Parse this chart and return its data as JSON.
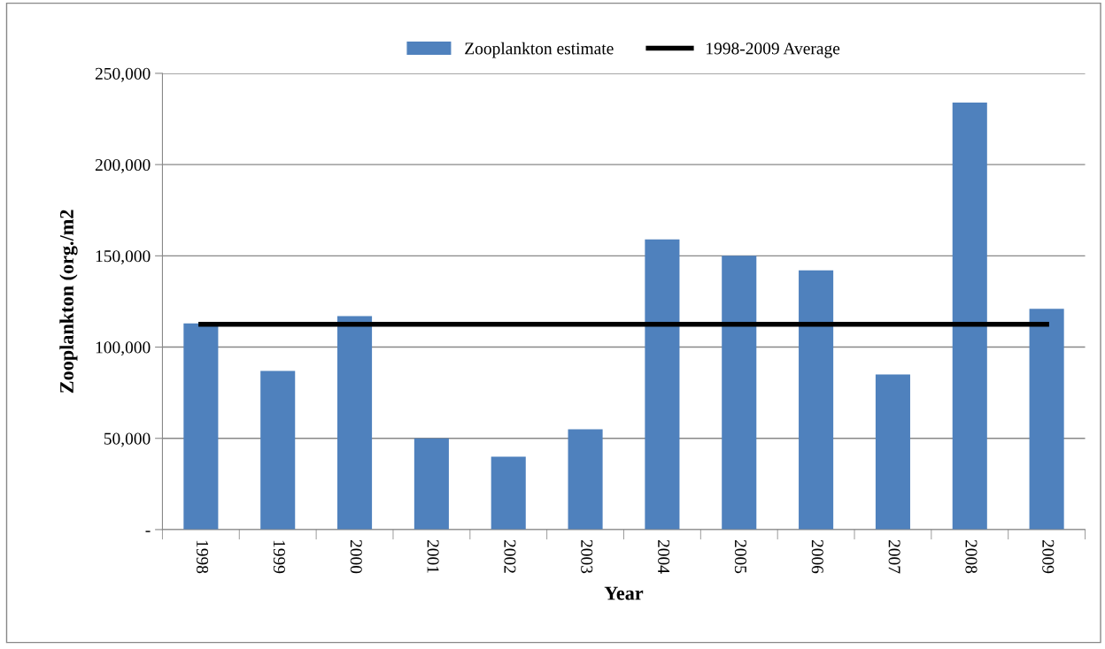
{
  "chart_data": {
    "type": "bar",
    "xlabel": "Year",
    "ylabel": "Zooplankton (org./m2",
    "categories": [
      "1998",
      "1999",
      "2000",
      "2001",
      "2002",
      "2003",
      "2004",
      "2005",
      "2006",
      "2007",
      "2008",
      "2009"
    ],
    "series": [
      {
        "name": "Zooplankton estimate",
        "color": "#4f81bd",
        "values": [
          113000,
          87000,
          117000,
          50000,
          40000,
          55000,
          159000,
          150000,
          142000,
          85000,
          234000,
          121000
        ]
      },
      {
        "name": "1998-2009 Average",
        "type": "line",
        "color": "#000000",
        "values": [
          112500,
          112500,
          112500,
          112500,
          112500,
          112500,
          112500,
          112500,
          112500,
          112500,
          112500,
          112500
        ]
      }
    ],
    "ylim": [
      0,
      250000
    ],
    "yticks": [
      {
        "value": 0,
        "label": "-"
      },
      {
        "value": 50000,
        "label": "50,000"
      },
      {
        "value": 100000,
        "label": "100,000"
      },
      {
        "value": 150000,
        "label": "150,000"
      },
      {
        "value": 200000,
        "label": "200,000"
      },
      {
        "value": 250000,
        "label": "250,000"
      }
    ],
    "grid": "y",
    "legend": "top",
    "marker": "none"
  }
}
